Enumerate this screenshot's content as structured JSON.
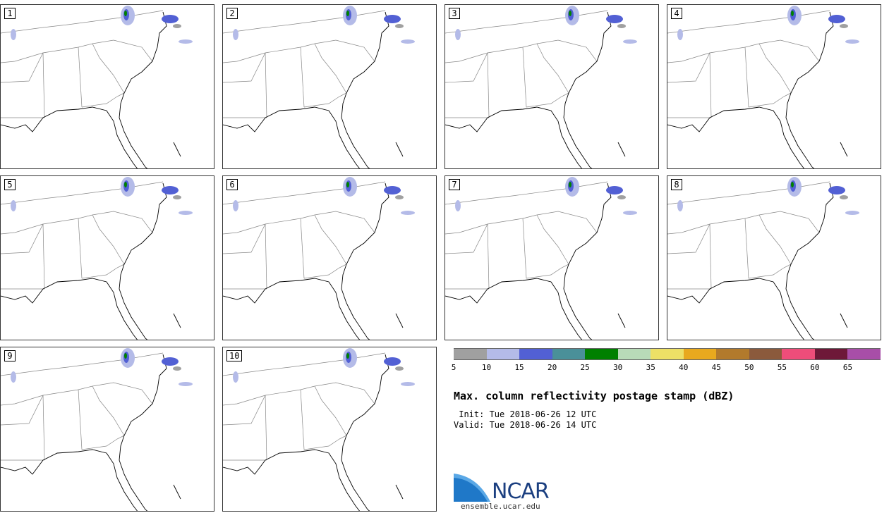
{
  "panels": [
    {
      "label": "1"
    },
    {
      "label": "2"
    },
    {
      "label": "3"
    },
    {
      "label": "4"
    },
    {
      "label": "5"
    },
    {
      "label": "6"
    },
    {
      "label": "7"
    },
    {
      "label": "8"
    },
    {
      "label": "9"
    },
    {
      "label": "10"
    }
  ],
  "colorbar": {
    "colors": [
      "#a0a0a0",
      "#b4bbe8",
      "#5260d4",
      "#4a9099",
      "#008000",
      "#b8dbb8",
      "#ede066",
      "#e8a91e",
      "#b27a2c",
      "#8b5a3c",
      "#ee4d7a",
      "#6e1838",
      "#a84ea8"
    ],
    "ticks": [
      "5",
      "10",
      "15",
      "20",
      "25",
      "30",
      "35",
      "40",
      "45",
      "50",
      "55",
      "60",
      "65"
    ]
  },
  "title": "Max. column reflectivity postage stamp (dBZ)",
  "init": " Init: Tue 2018-06-26 12 UTC",
  "valid": "Valid: Tue 2018-06-26 14 UTC",
  "logo": {
    "text": "NCAR",
    "url": "ensemble.ucar.edu"
  }
}
